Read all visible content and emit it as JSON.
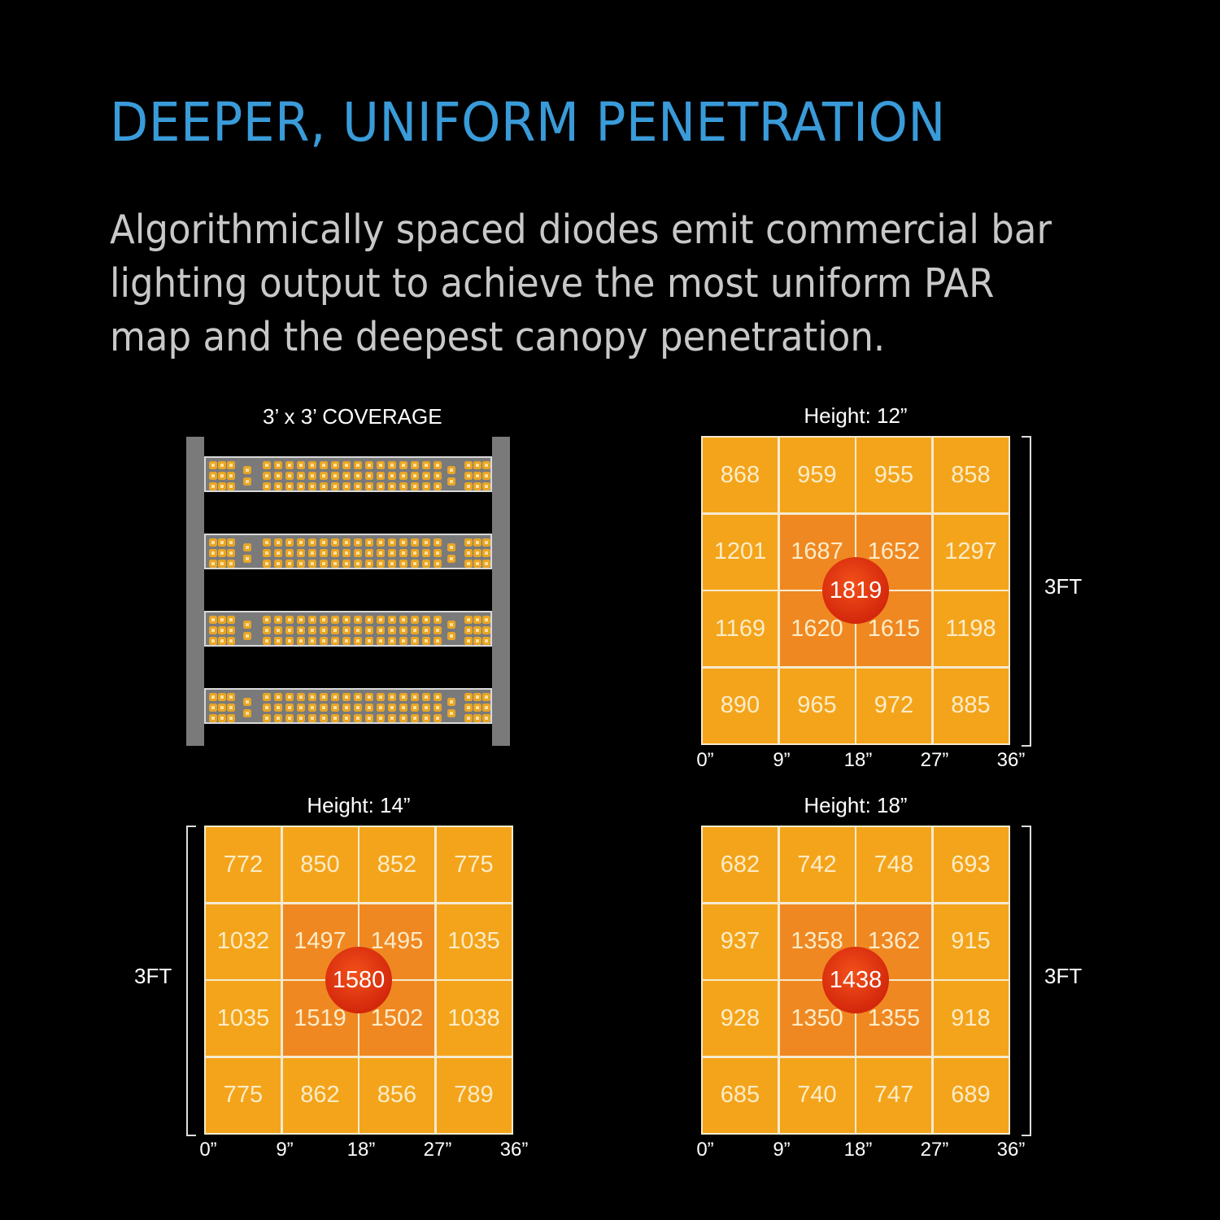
{
  "header": {
    "title": "DEEPER, UNIFORM PENETRATION",
    "subtitle": "Algorithmically spaced diodes emit commercial bar lighting output to achieve the most uniform PAR map and the deepest canopy penetration."
  },
  "fixture": {
    "label": "3’ x 3’ COVERAGE",
    "bar_count": 4
  },
  "colors": {
    "title": "#3a9bd9",
    "cell_outer": "#f4a41a",
    "cell_inner": "#f08822",
    "peak": "#e0320e",
    "grid_lines": "#f5ead0"
  },
  "chart_data": [
    {
      "type": "heatmap",
      "title": "Height: 12”",
      "x_ticks": [
        "0”",
        "9”",
        "18”",
        "27”",
        "36”"
      ],
      "side_label": "3FT",
      "values": [
        [
          868,
          959,
          955,
          858
        ],
        [
          1201,
          1687,
          1652,
          1297
        ],
        [
          1169,
          1620,
          1615,
          1198
        ],
        [
          890,
          965,
          972,
          885
        ]
      ],
      "center_peak": 1819
    },
    {
      "type": "heatmap",
      "title": "Height: 14”",
      "x_ticks": [
        "0”",
        "9”",
        "18”",
        "27”",
        "36”"
      ],
      "side_label": "3FT",
      "values": [
        [
          772,
          850,
          852,
          775
        ],
        [
          1032,
          1497,
          1495,
          1035
        ],
        [
          1035,
          1519,
          1502,
          1038
        ],
        [
          775,
          862,
          856,
          789
        ]
      ],
      "center_peak": 1580
    },
    {
      "type": "heatmap",
      "title": "Height: 18”",
      "x_ticks": [
        "0”",
        "9”",
        "18”",
        "27”",
        "36”"
      ],
      "side_label": "3FT",
      "values": [
        [
          682,
          742,
          748,
          693
        ],
        [
          937,
          1358,
          1362,
          915
        ],
        [
          928,
          1350,
          1355,
          918
        ],
        [
          685,
          740,
          747,
          689
        ]
      ],
      "center_peak": 1438
    }
  ]
}
